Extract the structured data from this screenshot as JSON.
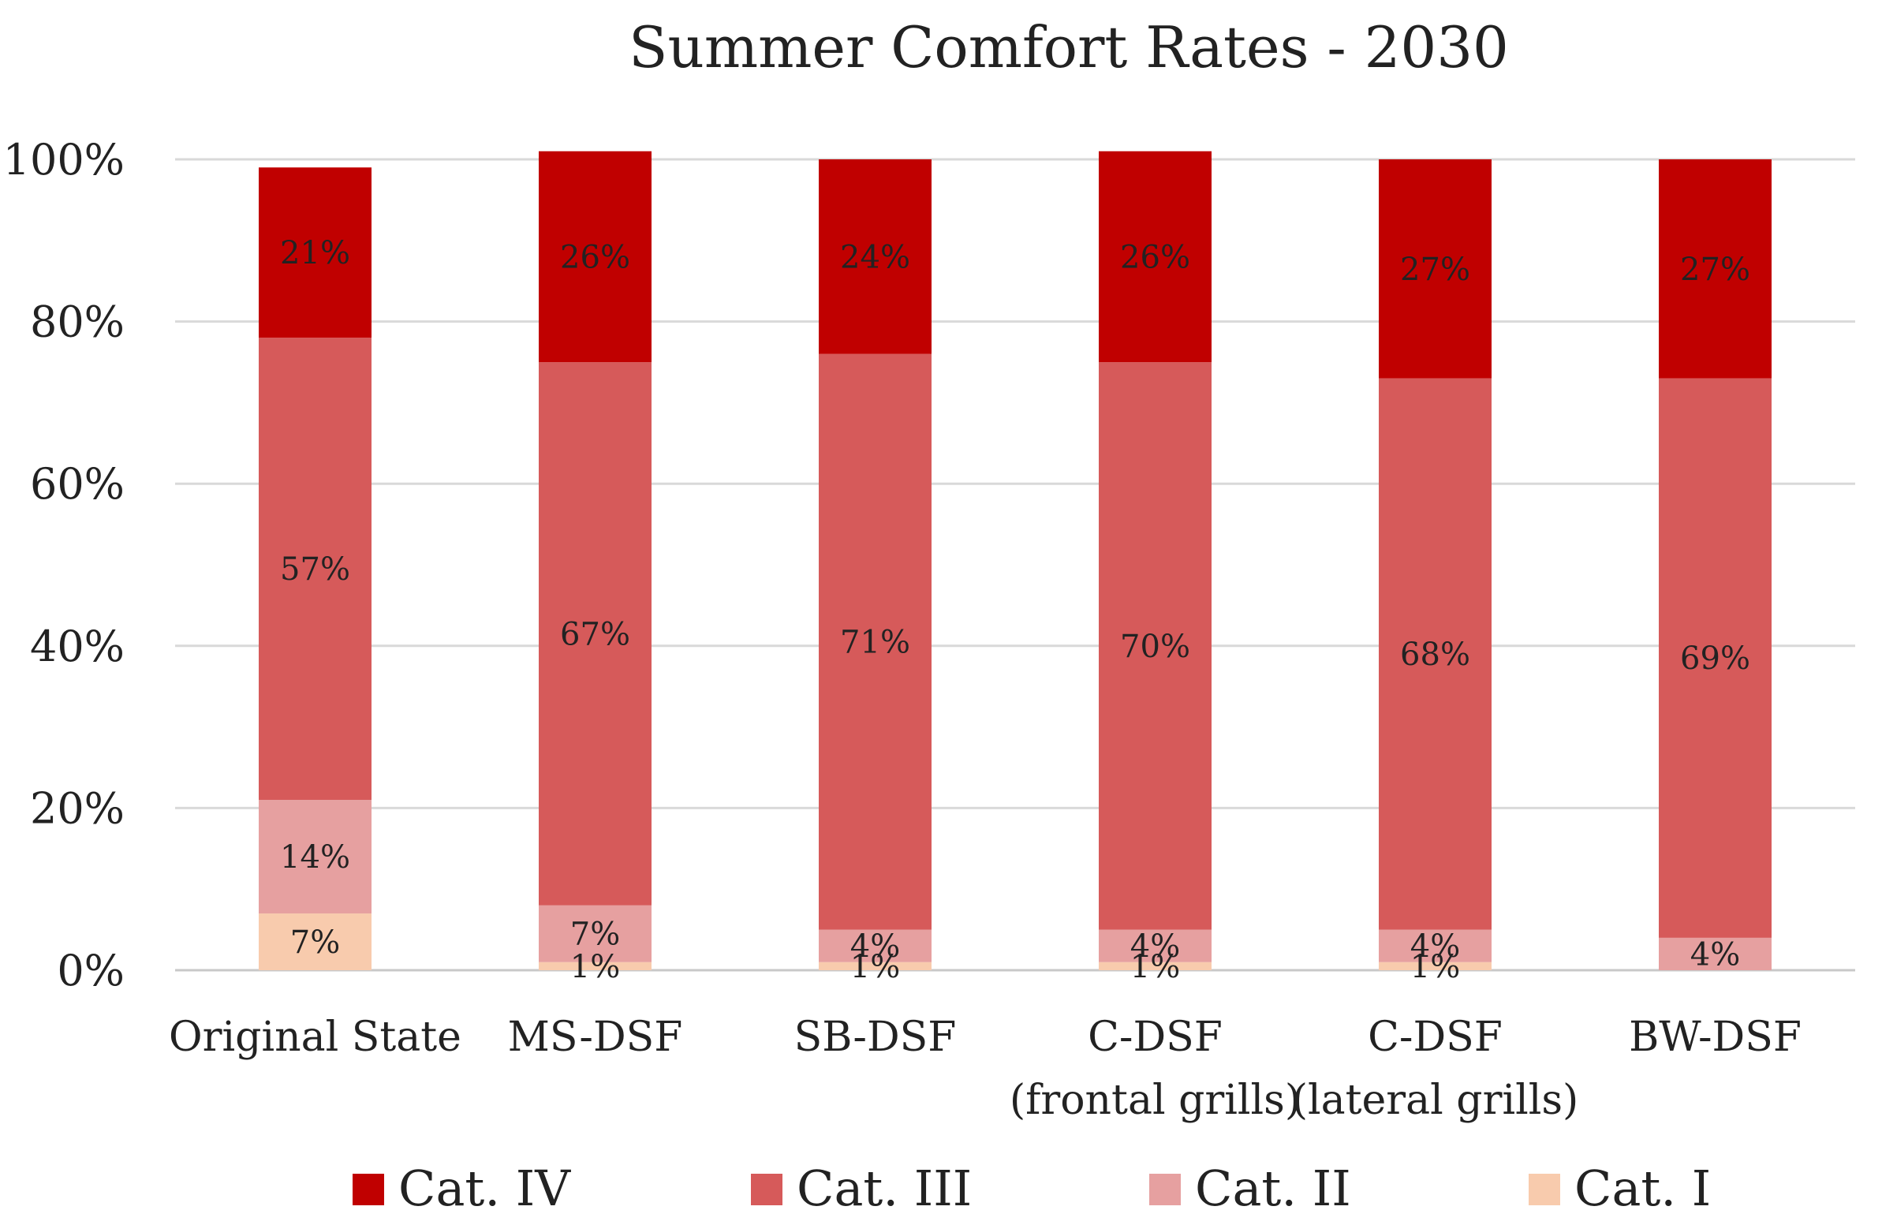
{
  "chart_data": {
    "type": "bar",
    "stacked": true,
    "title": "Summer Comfort Rates - 2030",
    "xlabel": "",
    "ylabel": "",
    "ylim": [
      0,
      100
    ],
    "yticks": [
      "0%",
      "20%",
      "40%",
      "60%",
      "80%",
      "100%"
    ],
    "grid": true,
    "legend_position": "bottom",
    "categories": [
      [
        "Original State"
      ],
      [
        "MS-DSF"
      ],
      [
        "SB-DSF"
      ],
      [
        "C-DSF",
        "(frontal grills)"
      ],
      [
        "C-DSF",
        "(lateral grills)"
      ],
      [
        "BW-DSF"
      ]
    ],
    "series": [
      {
        "name": "Cat. I",
        "color": "#f8cbad",
        "values": [
          7,
          1,
          1,
          1,
          1,
          0
        ],
        "labels": [
          "7%",
          "1%",
          "1%",
          "1%",
          "1%",
          ""
        ]
      },
      {
        "name": "Cat. II",
        "color": "#e6a0a0",
        "values": [
          14,
          7,
          4,
          4,
          4,
          4
        ],
        "labels": [
          "14%",
          "7%",
          "4%",
          "4%",
          "4%",
          "4%"
        ]
      },
      {
        "name": "Cat. III",
        "color": "#d65a5a",
        "values": [
          57,
          67,
          71,
          70,
          68,
          69
        ],
        "labels": [
          "57%",
          "67%",
          "71%",
          "70%",
          "68%",
          "69%"
        ]
      },
      {
        "name": "Cat. IV",
        "color": "#c00000",
        "values": [
          21,
          26,
          24,
          26,
          27,
          27
        ],
        "labels": [
          "21%",
          "26%",
          "24%",
          "26%",
          "27%",
          "27%"
        ]
      }
    ],
    "legend_order": [
      "Cat. IV",
      "Cat. III",
      "Cat. II",
      "Cat. I"
    ]
  }
}
